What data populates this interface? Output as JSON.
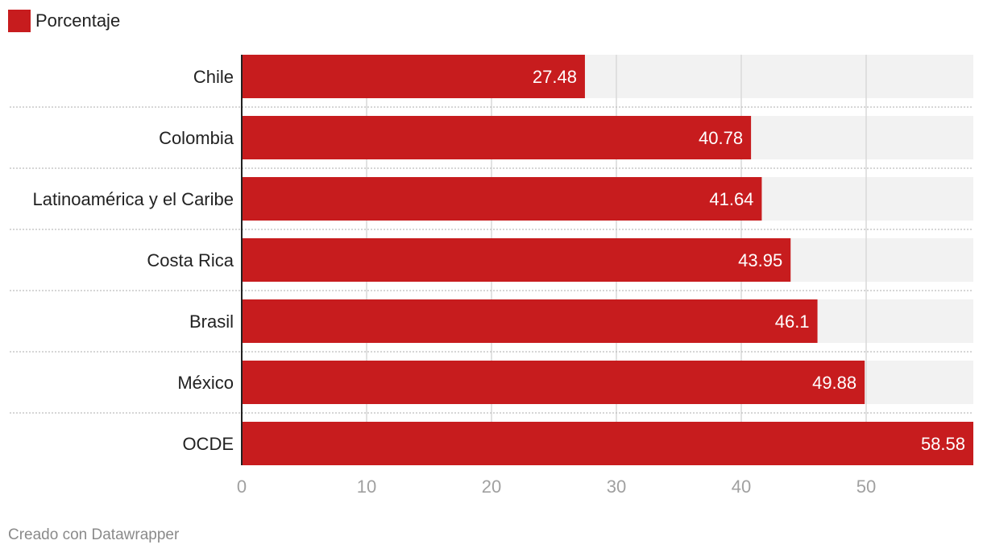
{
  "legend": {
    "label": "Porcentaje",
    "color": "#c71c1e"
  },
  "credit": "Creado con Datawrapper",
  "chart_data": {
    "type": "bar",
    "orientation": "horizontal",
    "categories": [
      "Chile",
      "Colombia",
      "Latinoamérica y el Caribe",
      "Costa Rica",
      "Brasil",
      "México",
      "OCDE"
    ],
    "series": [
      {
        "name": "Porcentaje",
        "values": [
          27.48,
          40.78,
          41.64,
          43.95,
          46.1,
          49.88,
          58.58
        ],
        "color": "#c71c1e"
      }
    ],
    "value_labels": [
      "27.48",
      "40.78",
      "41.64",
      "43.95",
      "46.1",
      "49.88",
      "58.58"
    ],
    "x_ticks": [
      0,
      10,
      20,
      30,
      40,
      50
    ],
    "xlim": [
      0,
      58.58
    ],
    "grid": true,
    "legend_position": "top-left",
    "colors": {
      "bar": "#c71c1e",
      "background_bar": "#f2f2f2",
      "grid": "#d9d9d9",
      "tick_text": "#a0a0a0"
    }
  }
}
